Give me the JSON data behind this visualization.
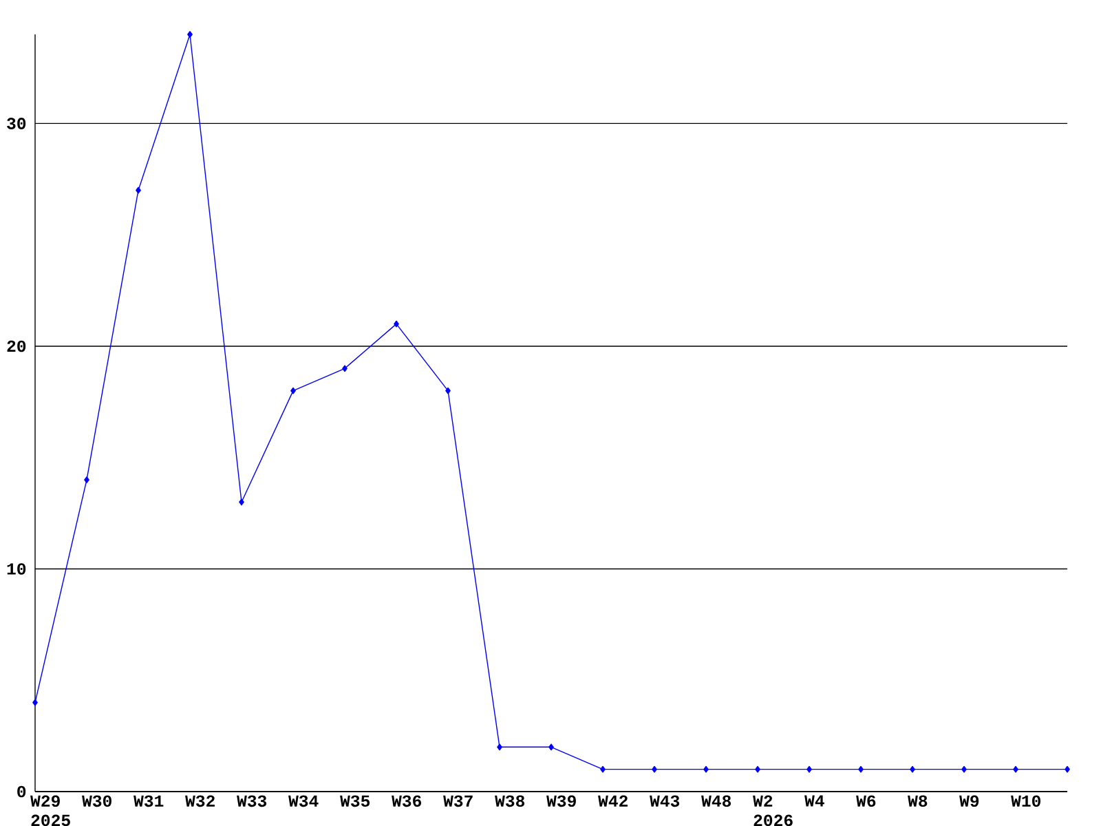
{
  "chart_data": {
    "type": "line",
    "categories": [
      "W29 2025",
      "W30",
      "W31",
      "W32",
      "W33",
      "W34",
      "W35",
      "W36",
      "W37",
      "W38",
      "W39",
      "W42",
      "W43",
      "W48",
      "W2 2026",
      "W4",
      "W6",
      "W8",
      "W9",
      "W10",
      null
    ],
    "series": [
      {
        "color": "#0000ff",
        "values": [
          4,
          14,
          27,
          34,
          13,
          18,
          19,
          21,
          18,
          2,
          2,
          1,
          1,
          1,
          1,
          1,
          1,
          1,
          1,
          1,
          1
        ]
      }
    ],
    "ylim": [
      0,
      34
    ],
    "yticks": [
      0,
      10,
      20,
      30
    ],
    "grid": "y",
    "marker": "diamond",
    "line_style": "solid"
  }
}
